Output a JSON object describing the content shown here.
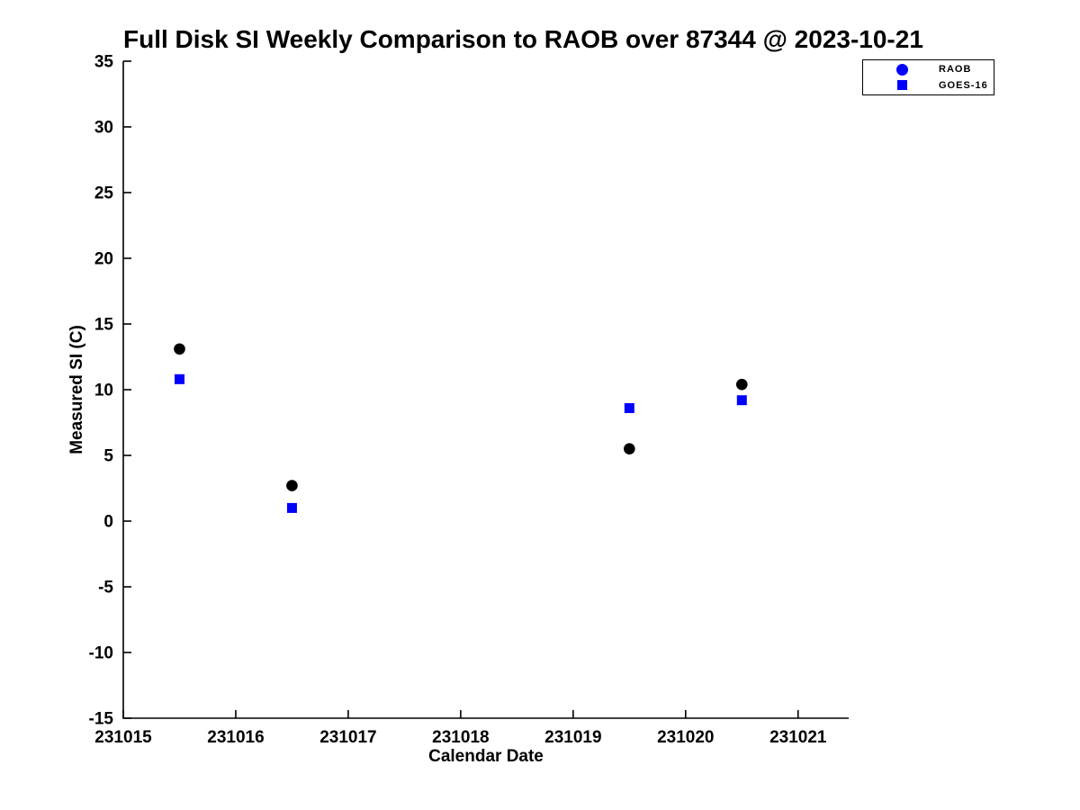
{
  "chart_data": {
    "type": "scatter",
    "title": "Full Disk SI Weekly Comparison to RAOB over 87344 @ 2023-10-21",
    "xlabel": "Calendar Date",
    "ylabel": "Measured SI (C)",
    "xlim": [
      231015,
      231021.45
    ],
    "ylim": [
      -15,
      35
    ],
    "x_ticks": [
      231015,
      231016,
      231017,
      231018,
      231019,
      231020,
      231021
    ],
    "y_ticks": [
      35,
      30,
      25,
      20,
      15,
      10,
      5,
      0,
      -5,
      -10,
      -15
    ],
    "grid": false,
    "legend_position": "upper-right",
    "axis_color": "#000000",
    "background_color": "#ffffff",
    "series": [
      {
        "name": "RAOB",
        "marker": "circle",
        "point_color": "#000000",
        "legend_marker_color": "#0000ff",
        "x": [
          231015.5,
          231016.5,
          231019.5,
          231020.5
        ],
        "y": [
          13.1,
          2.7,
          5.5,
          10.4
        ]
      },
      {
        "name": "GOES-16",
        "marker": "square",
        "point_color": "#0000ff",
        "legend_marker_color": "#0000ff",
        "x": [
          231015.5,
          231016.5,
          231019.5,
          231020.5
        ],
        "y": [
          10.8,
          1.0,
          8.6,
          9.2
        ]
      }
    ]
  }
}
